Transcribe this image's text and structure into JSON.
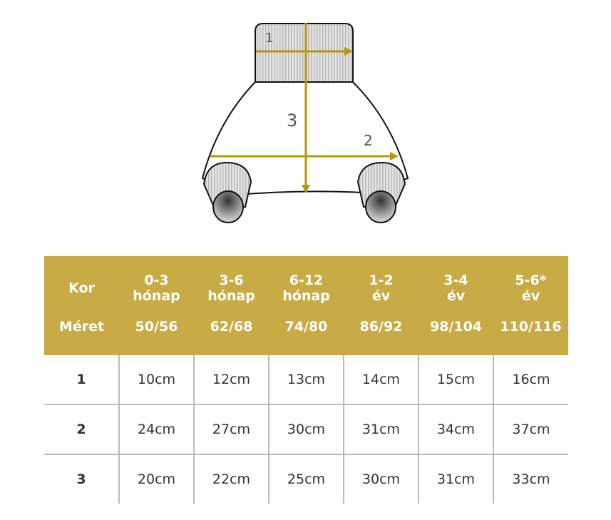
{
  "diagram": {
    "labels": [
      "1",
      "2",
      "3"
    ],
    "arrow_color": "#b8960a"
  },
  "table": {
    "header_color": "#c8ab45",
    "age_label": "Kor",
    "size_label": "Méret",
    "columns": [
      {
        "age1": "0-3",
        "age2": "hónap",
        "size": "50/56"
      },
      {
        "age1": "3-6",
        "age2": "hónap",
        "size": "62/68"
      },
      {
        "age1": "6-12",
        "age2": "hónap",
        "size": "74/80"
      },
      {
        "age1": "1-2",
        "age2": "év",
        "size": "86/92"
      },
      {
        "age1": "3-4",
        "age2": "év",
        "size": "98/104"
      },
      {
        "age1": "5-6*",
        "age2": "év",
        "size": "110/116"
      }
    ],
    "rows": [
      {
        "label": "1",
        "values": [
          "10cm",
          "12cm",
          "13cm",
          "14cm",
          "15cm",
          "16cm"
        ]
      },
      {
        "label": "2",
        "values": [
          "24cm",
          "27cm",
          "30cm",
          "31cm",
          "34cm",
          "37cm"
        ]
      },
      {
        "label": "3",
        "values": [
          "20cm",
          "22cm",
          "25cm",
          "30cm",
          "31cm",
          "33cm"
        ]
      }
    ]
  }
}
